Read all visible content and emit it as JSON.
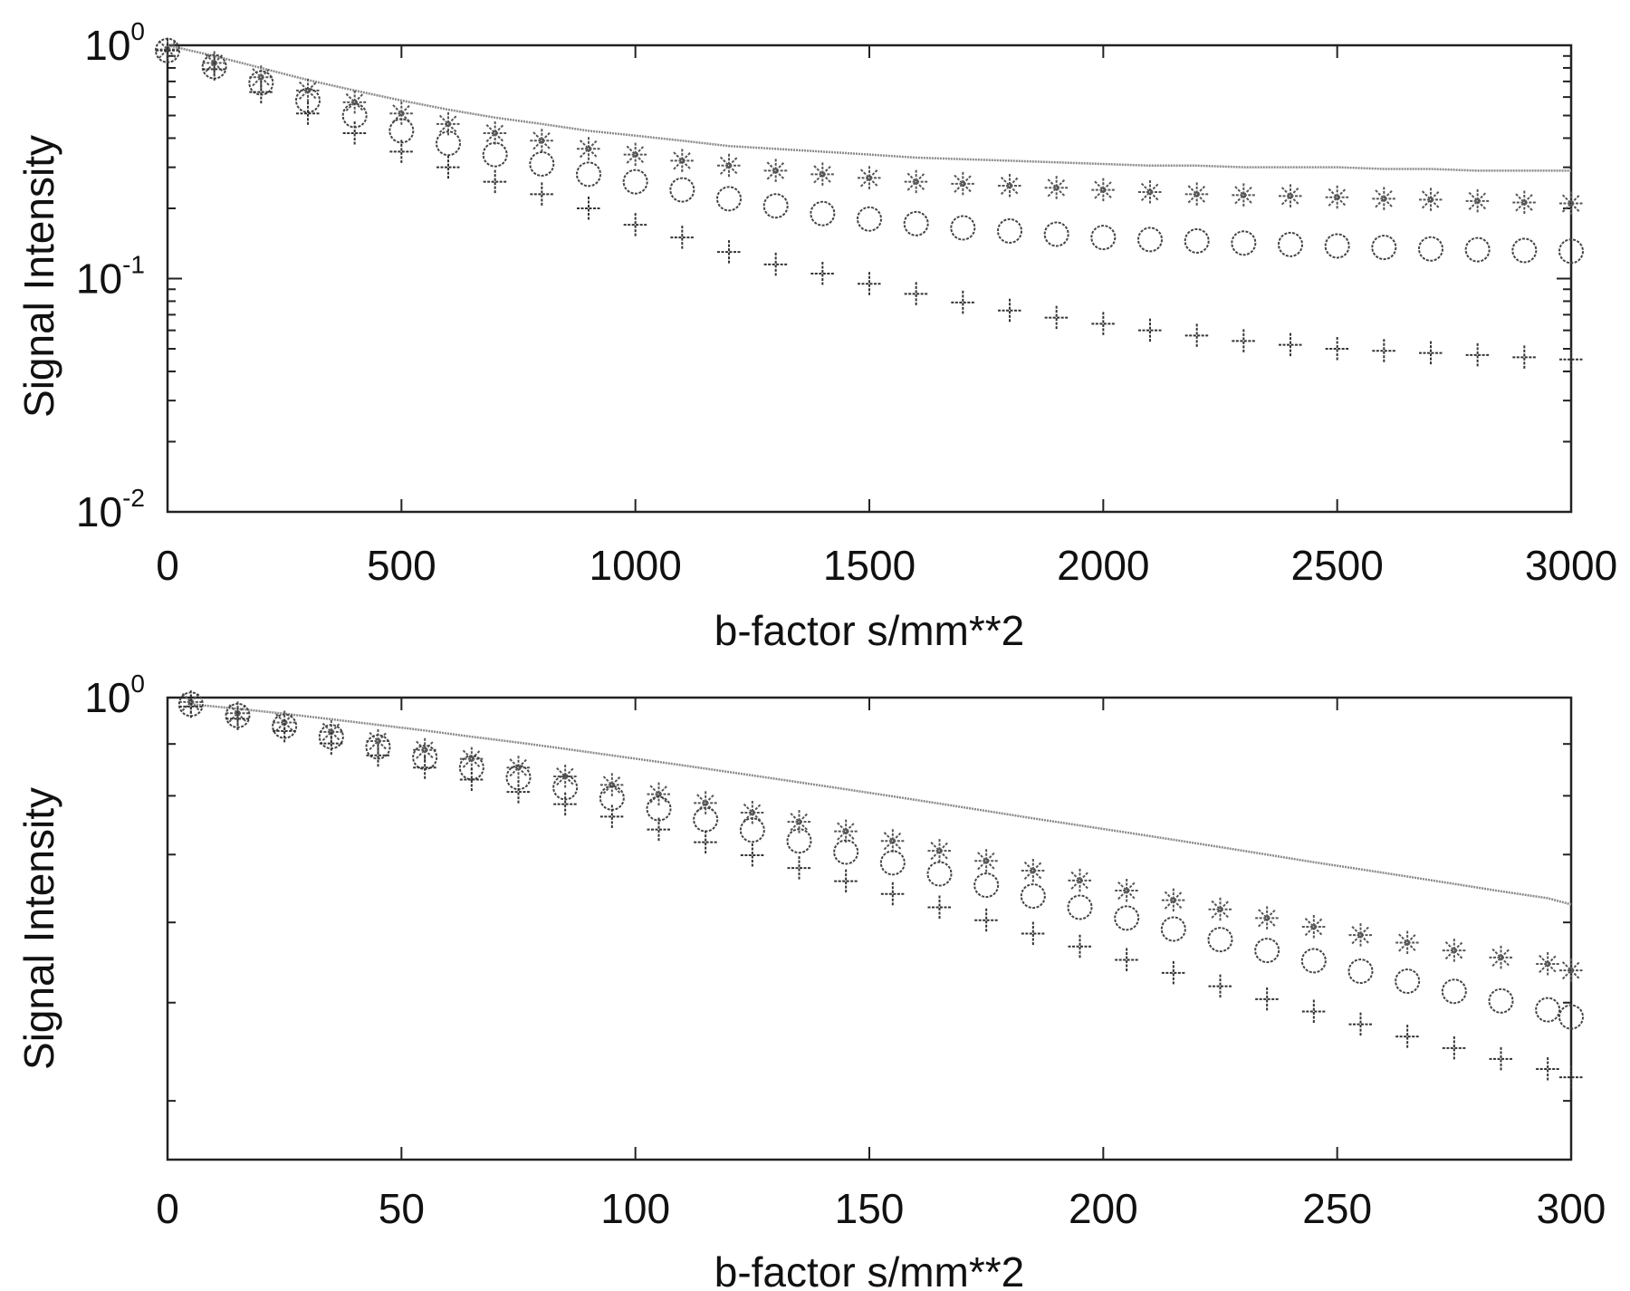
{
  "chart_data": [
    {
      "type": "scatter",
      "xlabel": "b-factor s/mm**2",
      "ylabel": "Signal Intensity",
      "xlim": [
        0,
        3000
      ],
      "ylim": [
        0.01,
        1
      ],
      "yscale": "log",
      "x_ticks": [
        "0",
        "500",
        "1000",
        "1500",
        "2000",
        "2500",
        "3000"
      ],
      "y_ticks": [
        {
          "value": 0.01,
          "base": "10",
          "exp": "-2"
        },
        {
          "value": 0.1,
          "base": "10",
          "exp": "-1"
        },
        {
          "value": 1,
          "base": "10",
          "exp": "0"
        }
      ],
      "grid": false,
      "x": [
        0,
        100,
        200,
        300,
        400,
        500,
        600,
        700,
        800,
        900,
        1000,
        1100,
        1200,
        1300,
        1400,
        1500,
        1600,
        1700,
        1800,
        1900,
        2000,
        2100,
        2200,
        2300,
        2400,
        2500,
        2600,
        2700,
        2800,
        2900,
        3000
      ],
      "series": [
        {
          "marker": "line",
          "values": [
            1.0,
            0.9,
            0.8,
            0.71,
            0.64,
            0.58,
            0.53,
            0.49,
            0.46,
            0.43,
            0.41,
            0.39,
            0.37,
            0.36,
            0.35,
            0.34,
            0.33,
            0.325,
            0.32,
            0.315,
            0.31,
            0.305,
            0.305,
            0.3,
            0.3,
            0.3,
            0.295,
            0.295,
            0.29,
            0.29,
            0.29
          ]
        },
        {
          "marker": "asterisk",
          "values": [
            0.96,
            0.84,
            0.73,
            0.64,
            0.57,
            0.51,
            0.46,
            0.42,
            0.39,
            0.36,
            0.34,
            0.32,
            0.305,
            0.29,
            0.28,
            0.27,
            0.26,
            0.255,
            0.25,
            0.245,
            0.24,
            0.235,
            0.23,
            0.228,
            0.226,
            0.223,
            0.22,
            0.218,
            0.215,
            0.212,
            0.21
          ]
        },
        {
          "marker": "circle",
          "values": [
            0.95,
            0.81,
            0.69,
            0.58,
            0.5,
            0.43,
            0.38,
            0.34,
            0.31,
            0.28,
            0.26,
            0.24,
            0.22,
            0.205,
            0.19,
            0.18,
            0.172,
            0.165,
            0.16,
            0.155,
            0.15,
            0.147,
            0.145,
            0.142,
            0.14,
            0.138,
            0.136,
            0.134,
            0.133,
            0.132,
            0.131
          ]
        },
        {
          "marker": "plus",
          "values": [
            0.95,
            0.79,
            0.63,
            0.51,
            0.42,
            0.35,
            0.3,
            0.26,
            0.23,
            0.2,
            0.17,
            0.15,
            0.13,
            0.115,
            0.105,
            0.095,
            0.086,
            0.079,
            0.073,
            0.068,
            0.064,
            0.06,
            0.057,
            0.054,
            0.052,
            0.05,
            0.049,
            0.048,
            0.047,
            0.046,
            0.045
          ]
        }
      ]
    },
    {
      "type": "scatter",
      "xlabel": "b-factor s/mm**2",
      "ylabel": "Signal Intensity",
      "xlim": [
        0,
        300
      ],
      "ylim": [
        0.35,
        1
      ],
      "yscale": "log",
      "x_ticks": [
        "0",
        "50",
        "100",
        "150",
        "200",
        "250",
        "300"
      ],
      "y_ticks": [
        {
          "value": 1,
          "base": "10",
          "exp": "0"
        }
      ],
      "grid": false,
      "x": [
        5,
        15,
        25,
        35,
        45,
        55,
        65,
        75,
        85,
        95,
        105,
        115,
        125,
        135,
        145,
        155,
        165,
        175,
        185,
        195,
        205,
        215,
        225,
        235,
        245,
        255,
        265,
        275,
        285,
        295,
        300
      ],
      "series": [
        {
          "marker": "line",
          "values": [
            0.985,
            0.975,
            0.964,
            0.952,
            0.94,
            0.928,
            0.915,
            0.903,
            0.89,
            0.877,
            0.864,
            0.851,
            0.838,
            0.825,
            0.812,
            0.799,
            0.786,
            0.773,
            0.76,
            0.748,
            0.736,
            0.724,
            0.712,
            0.7,
            0.688,
            0.677,
            0.666,
            0.655,
            0.644,
            0.634,
            0.625
          ]
        },
        {
          "marker": "asterisk",
          "values": [
            0.99,
            0.965,
            0.945,
            0.925,
            0.906,
            0.888,
            0.87,
            0.853,
            0.836,
            0.82,
            0.803,
            0.787,
            0.77,
            0.754,
            0.738,
            0.722,
            0.706,
            0.69,
            0.675,
            0.66,
            0.645,
            0.631,
            0.618,
            0.606,
            0.594,
            0.583,
            0.573,
            0.563,
            0.554,
            0.546,
            0.538
          ]
        },
        {
          "marker": "circle",
          "values": [
            0.985,
            0.96,
            0.937,
            0.915,
            0.894,
            0.873,
            0.853,
            0.834,
            0.815,
            0.796,
            0.777,
            0.758,
            0.74,
            0.722,
            0.704,
            0.687,
            0.67,
            0.653,
            0.637,
            0.621,
            0.606,
            0.591,
            0.577,
            0.563,
            0.55,
            0.537,
            0.525,
            0.513,
            0.502,
            0.492,
            0.484
          ]
        },
        {
          "marker": "plus",
          "values": [
            0.98,
            0.953,
            0.927,
            0.901,
            0.877,
            0.853,
            0.83,
            0.807,
            0.785,
            0.763,
            0.741,
            0.72,
            0.699,
            0.679,
            0.659,
            0.64,
            0.621,
            0.603,
            0.585,
            0.568,
            0.551,
            0.535,
            0.519,
            0.504,
            0.49,
            0.476,
            0.463,
            0.451,
            0.44,
            0.43,
            0.422
          ]
        }
      ]
    }
  ]
}
